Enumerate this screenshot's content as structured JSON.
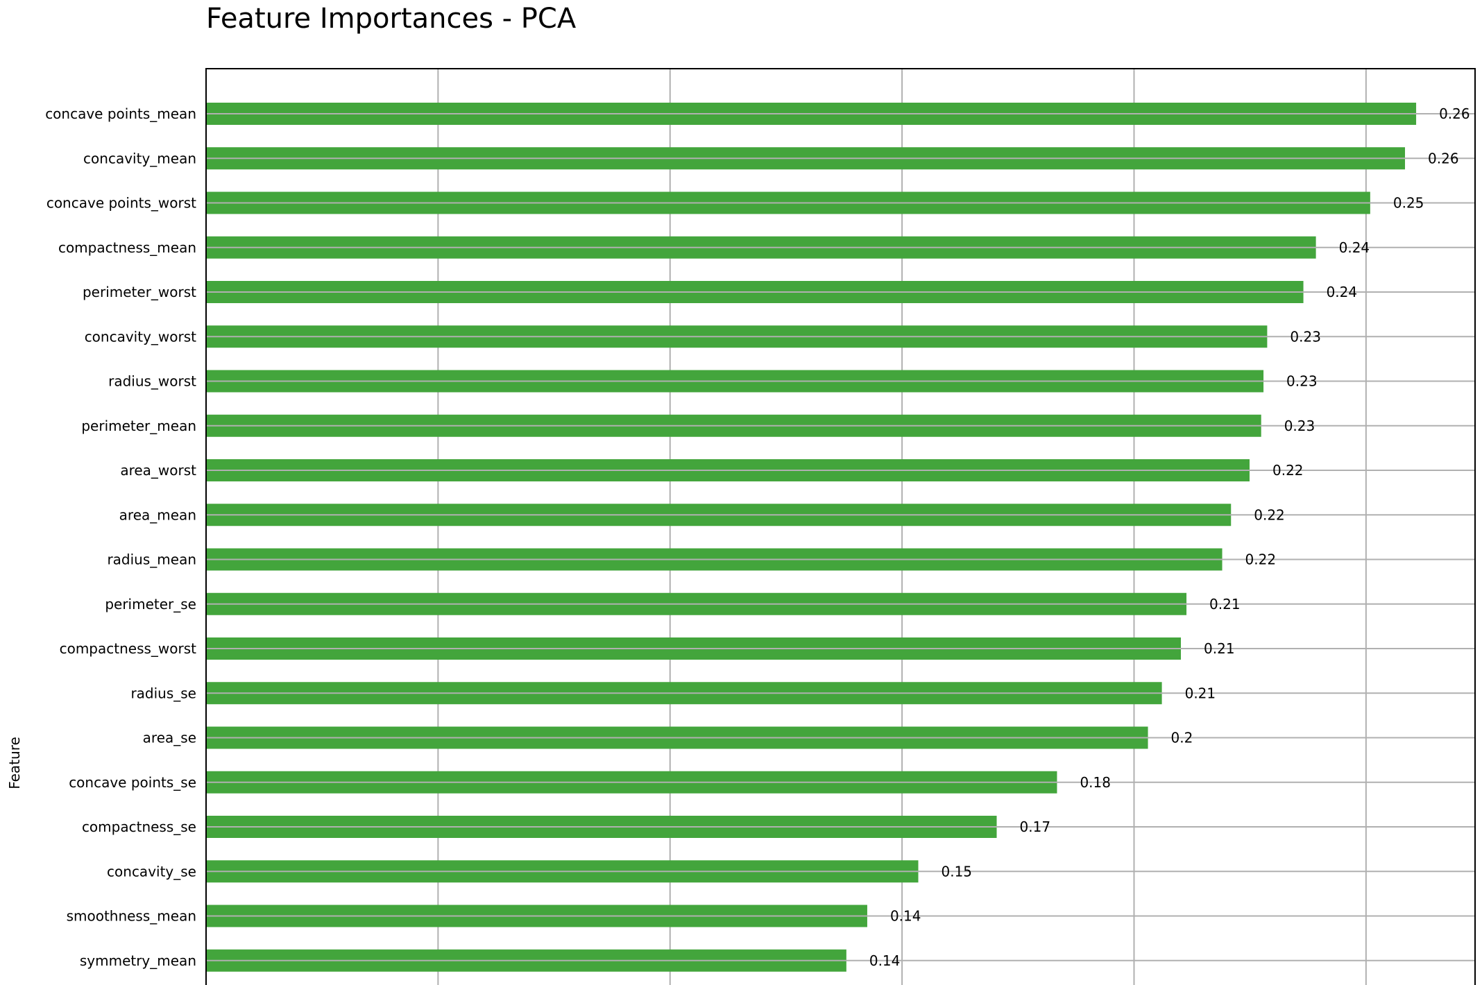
{
  "chart_data": {
    "type": "bar",
    "orientation": "horizontal",
    "title": "Feature Importances - PCA",
    "xlabel": "",
    "ylabel": "Feature",
    "xlim": [
      0,
      0.2735
    ],
    "grid": true,
    "bar_color": "#43a53c",
    "categories": [
      "concave points_mean",
      "concavity_mean",
      "concave points_worst",
      "compactness_mean",
      "perimeter_worst",
      "concavity_worst",
      "radius_worst",
      "perimeter_mean",
      "area_worst",
      "area_mean",
      "radius_mean",
      "perimeter_se",
      "compactness_worst",
      "radius_se",
      "area_se",
      "concave points_se",
      "compactness_se",
      "concavity_se",
      "smoothness_mean",
      "symmetry_mean"
    ],
    "values": [
      0.2608,
      0.2584,
      0.2509,
      0.2392,
      0.2365,
      0.2287,
      0.2279,
      0.2274,
      0.2249,
      0.2209,
      0.219,
      0.2113,
      0.2101,
      0.206,
      0.203,
      0.1834,
      0.1704,
      0.1535,
      0.1425,
      0.138
    ],
    "labels": [
      "0.26",
      "0.26",
      "0.25",
      "0.24",
      "0.24",
      "0.23",
      "0.23",
      "0.23",
      "0.22",
      "0.22",
      "0.22",
      "0.21",
      "0.21",
      "0.21",
      "0.2",
      "0.18",
      "0.17",
      "0.15",
      "0.14",
      "0.14"
    ]
  }
}
